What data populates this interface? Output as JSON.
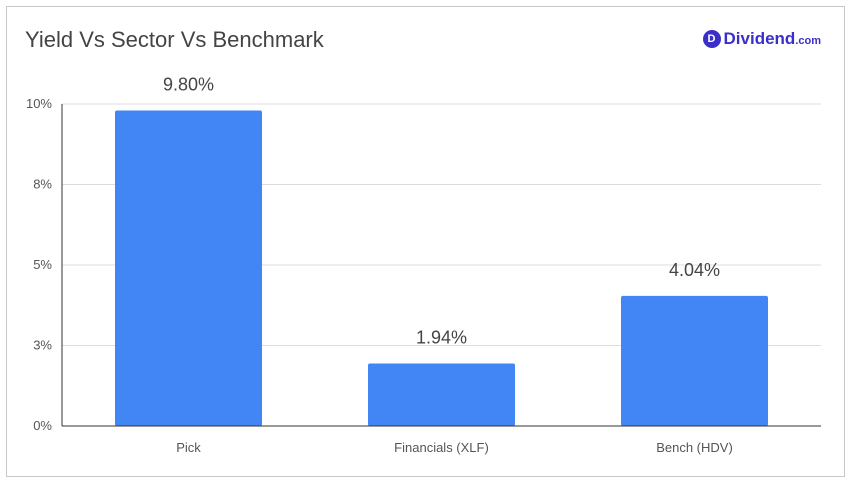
{
  "header": {
    "title": "Yield Vs Sector Vs Benchmark",
    "logo_letter": "D",
    "logo_name": "Dividend",
    "logo_suffix": ".com",
    "brand_color": "#3c2fc9"
  },
  "chart_data": {
    "type": "bar",
    "title": "Yield Vs Sector Vs Benchmark",
    "xlabel": "",
    "ylabel": "",
    "categories": [
      "Pick",
      "Financials (XLF)",
      "Bench (HDV)"
    ],
    "values": [
      9.8,
      1.94,
      4.04
    ],
    "data_labels": [
      "9.80%",
      "1.94%",
      "4.04%"
    ],
    "ylim": [
      0,
      10
    ],
    "y_ticks": [
      {
        "value": 0,
        "label": "0%"
      },
      {
        "value": 2.5,
        "label": "3%"
      },
      {
        "value": 5,
        "label": "5%"
      },
      {
        "value": 7.5,
        "label": "8%"
      },
      {
        "value": 10,
        "label": "10%"
      }
    ],
    "grid": true,
    "legend": "none",
    "bar_color": "#4285f4"
  }
}
